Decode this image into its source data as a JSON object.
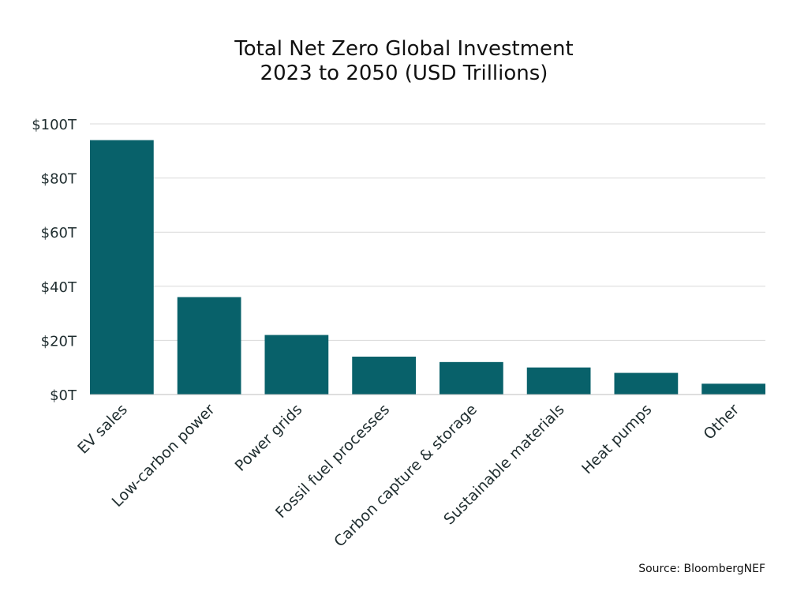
{
  "chart_data": {
    "type": "bar",
    "title": "Total Net Zero Global Investment",
    "subtitle": "2023 to 2050 (USD Trillions)",
    "categories": [
      "EV sales",
      "Low-carbon power",
      "Power grids",
      "Fossil fuel processes",
      "Carbon capture & storage",
      "Sustainable materials",
      "Heat pumps",
      "Other"
    ],
    "values": [
      94,
      36,
      22,
      14,
      12,
      10,
      8,
      4
    ],
    "ylim": [
      0,
      100
    ],
    "y_ticks": [
      0,
      20,
      40,
      60,
      80,
      100
    ],
    "y_tick_labels": [
      "$0T",
      "$20T",
      "$40T",
      "$60T",
      "$80T",
      "$100T"
    ],
    "grid": true,
    "legend": "none",
    "bar_color": "#08616a",
    "source": "Source: BloombergNEF"
  }
}
